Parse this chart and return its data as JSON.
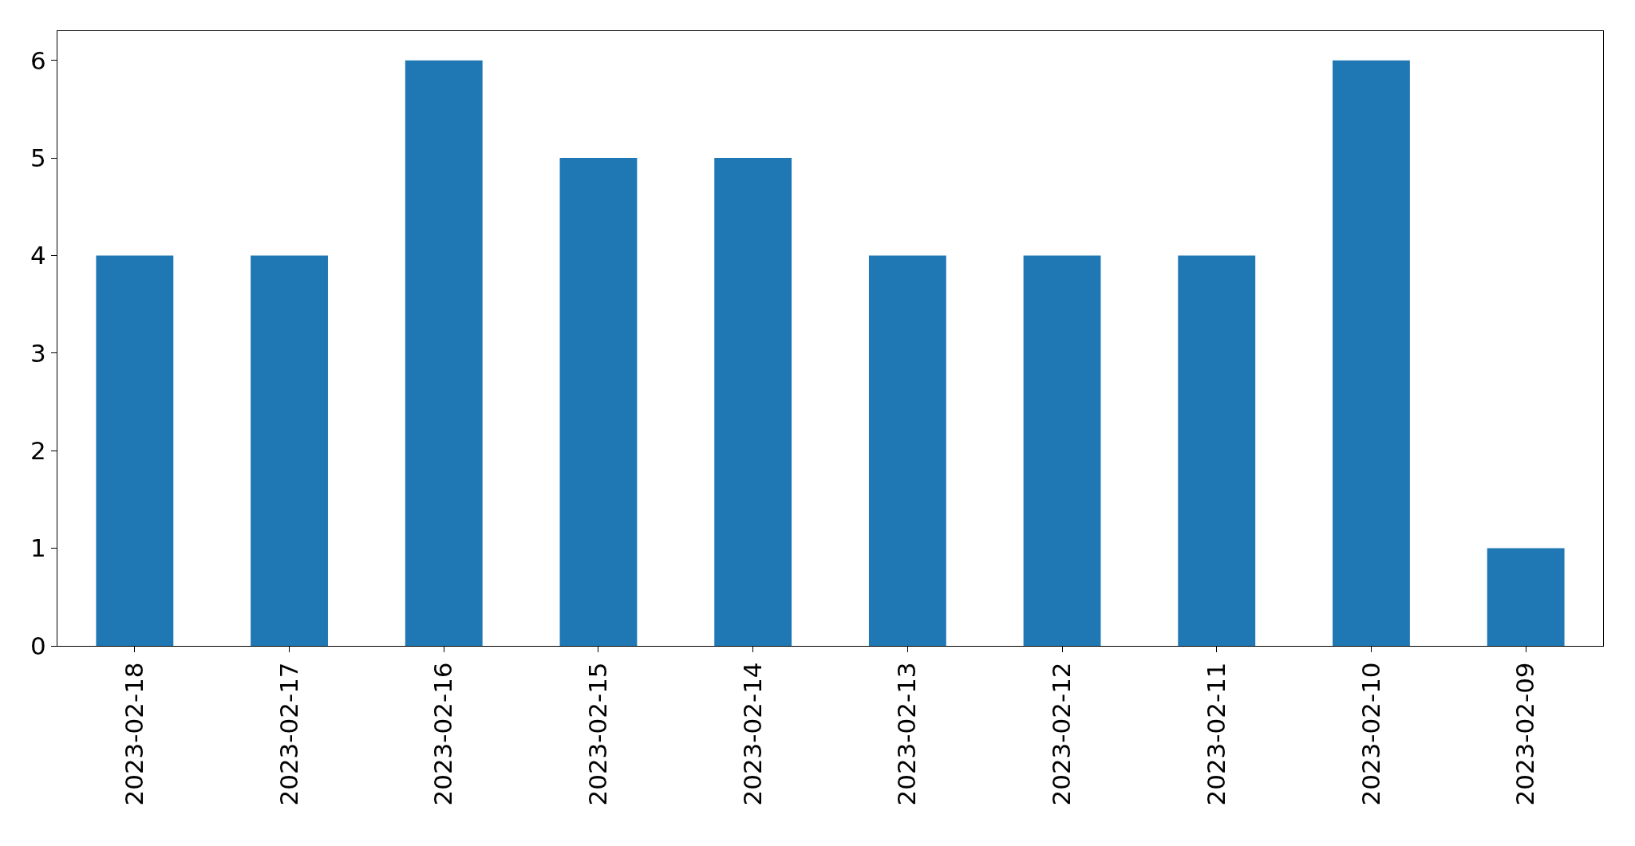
{
  "chart_data": {
    "type": "bar",
    "categories": [
      "2023-02-18",
      "2023-02-17",
      "2023-02-16",
      "2023-02-15",
      "2023-02-14",
      "2023-02-13",
      "2023-02-12",
      "2023-02-11",
      "2023-02-10",
      "2023-02-09"
    ],
    "values": [
      4,
      4,
      6,
      5,
      5,
      4,
      4,
      4,
      6,
      1
    ],
    "color": "#1f77b4",
    "ylim": [
      0,
      6.3
    ],
    "yticks": [
      0,
      1,
      2,
      3,
      4,
      5,
      6
    ],
    "grid": false
  }
}
